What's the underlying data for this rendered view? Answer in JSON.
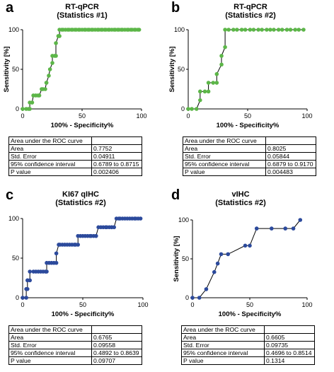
{
  "panels": [
    {
      "letter": "a",
      "title": "RT-qPCR",
      "subtitle": "(Statistics #1)",
      "color": "#5cb648",
      "table": {
        "header": "Area under the ROC curve",
        "rows": [
          {
            "label": "Area",
            "value": "0.7752"
          },
          {
            "label": "Std. Error",
            "value": "0.04911"
          },
          {
            "label": "95% confidence interval",
            "value": "0.6789 to 0.8715"
          },
          {
            "label": "P value",
            "value": "0.002406"
          }
        ]
      }
    },
    {
      "letter": "b",
      "title": "RT-qPCR",
      "subtitle": "(Statistics #2)",
      "color": "#5cb648",
      "table": {
        "header": "Area under the ROC curve",
        "rows": [
          {
            "label": "Area",
            "value": "0.8025"
          },
          {
            "label": "Std. Error",
            "value": "0.05844"
          },
          {
            "label": "95% confidence interval",
            "value": "0.6879 to 0.9170"
          },
          {
            "label": "P value",
            "value": "0.004483"
          }
        ]
      }
    },
    {
      "letter": "c",
      "title": "KI67 qIHC",
      "subtitle": "(Statistics #2)",
      "color": "#2c4a9c",
      "table": {
        "header": "Area under the ROC curve",
        "rows": [
          {
            "label": "Area",
            "value": "0.6765"
          },
          {
            "label": "Std. Error",
            "value": "0.09558"
          },
          {
            "label": "95% confidence interval",
            "value": "0.4892 to 0.8639"
          },
          {
            "label": "P value",
            "value": "0.09707"
          }
        ]
      }
    },
    {
      "letter": "d",
      "title": "vIHC",
      "subtitle": "(Statistics #2)",
      "color": "#2c4a9c",
      "table": {
        "header": "Area under the ROC curve",
        "rows": [
          {
            "label": "Area",
            "value": "0.6605"
          },
          {
            "label": "Std. Error",
            "value": "0.09735"
          },
          {
            "label": "95% confidence interval",
            "value": "0.4696 to 0.8514"
          },
          {
            "label": "P value",
            "value": "0.1314"
          }
        ]
      }
    }
  ],
  "chart_data": [
    {
      "type": "line",
      "title": "RT-qPCR",
      "subtitle": "(Statistics #1)",
      "xlabel": "100% - Specificity%",
      "ylabel": "Sensitivity [%]",
      "xlim": [
        0,
        100
      ],
      "ylim": [
        0,
        100
      ],
      "xticks": [
        0,
        50,
        100
      ],
      "yticks": [
        0,
        50,
        100
      ],
      "grid": false,
      "x": [
        0,
        3,
        5,
        6,
        6,
        8,
        9,
        11,
        13,
        14,
        16,
        17,
        19,
        20,
        20,
        22,
        23,
        25,
        25,
        27,
        28,
        28,
        30,
        31,
        31,
        33,
        34,
        36,
        38,
        39,
        41,
        42,
        44,
        45,
        47,
        48,
        50,
        52,
        53,
        55,
        56,
        58,
        59,
        61,
        63,
        64,
        66,
        67,
        69,
        70,
        72,
        73,
        75,
        77,
        78,
        80,
        81,
        83,
        84,
        86,
        88,
        89,
        91,
        92,
        94,
        95,
        97,
        98
      ],
      "y": [
        0,
        0,
        0,
        0,
        8,
        8,
        17,
        17,
        17,
        17,
        25,
        25,
        25,
        33,
        33,
        42,
        50,
        58,
        67,
        67,
        67,
        83,
        92,
        92,
        100,
        100,
        100,
        100,
        100,
        100,
        100,
        100,
        100,
        100,
        100,
        100,
        100,
        100,
        100,
        100,
        100,
        100,
        100,
        100,
        100,
        100,
        100,
        100,
        100,
        100,
        100,
        100,
        100,
        100,
        100,
        100,
        100,
        100,
        100,
        100,
        100,
        100,
        100,
        100,
        100,
        100,
        100,
        100
      ]
    },
    {
      "type": "line",
      "title": "RT-qPCR",
      "subtitle": "(Statistics #2)",
      "xlabel": "100% - Specificity%",
      "ylabel": "Sensitivity [%]",
      "xlim": [
        0,
        100
      ],
      "ylim": [
        0,
        100
      ],
      "xticks": [
        0,
        50,
        100
      ],
      "yticks": [
        0,
        50,
        100
      ],
      "grid": false,
      "x": [
        0,
        3,
        7,
        10,
        10,
        14,
        17,
        17,
        21,
        24,
        24,
        28,
        28,
        31,
        31,
        34,
        38,
        41,
        45,
        48,
        52,
        55,
        59,
        62,
        66,
        69,
        72,
        76,
        79,
        83,
        86,
        90,
        93,
        97
      ],
      "y": [
        0,
        0,
        0,
        11,
        22,
        22,
        22,
        33,
        33,
        33,
        44,
        56,
        67,
        78,
        100,
        100,
        100,
        100,
        100,
        100,
        100,
        100,
        100,
        100,
        100,
        100,
        100,
        100,
        100,
        100,
        100,
        100,
        100,
        100
      ]
    },
    {
      "type": "line",
      "title": "KI67 qIHC",
      "subtitle": "(Statistics #2)",
      "xlabel": "100% - Specificity%",
      "ylabel": "",
      "xlim": [
        0,
        100
      ],
      "ylim": [
        0,
        100
      ],
      "xticks": [
        0,
        50,
        100
      ],
      "yticks": [
        0,
        50,
        100
      ],
      "grid": false,
      "x": [
        0,
        3,
        3,
        4,
        4,
        6,
        6,
        9,
        11,
        13,
        15,
        17,
        19,
        20,
        20,
        22,
        24,
        26,
        28,
        28,
        30,
        31,
        33,
        35,
        37,
        39,
        41,
        43,
        44,
        46,
        46,
        48,
        50,
        52,
        54,
        56,
        57,
        59,
        61,
        61,
        63,
        65,
        67,
        69,
        70,
        72,
        74,
        74,
        76,
        78,
        80,
        81,
        83,
        85,
        87,
        89,
        91,
        93,
        94,
        96,
        98
      ],
      "y": [
        0,
        0,
        11,
        11,
        22,
        22,
        33,
        33,
        33,
        33,
        33,
        33,
        33,
        33,
        44,
        44,
        44,
        44,
        44,
        56,
        67,
        67,
        67,
        67,
        67,
        67,
        67,
        67,
        67,
        67,
        78,
        78,
        78,
        78,
        78,
        78,
        78,
        78,
        78,
        78,
        89,
        89,
        89,
        89,
        89,
        89,
        89,
        89,
        89,
        100,
        100,
        100,
        100,
        100,
        100,
        100,
        100,
        100,
        100,
        100,
        100
      ]
    },
    {
      "type": "line",
      "title": "vIHC",
      "subtitle": "(Statistics #2)",
      "xlabel": "100% - Specificity%",
      "ylabel": "Sensitivity [%]",
      "xlim": [
        0,
        100
      ],
      "ylim": [
        0,
        100
      ],
      "xticks": [
        0,
        50,
        100
      ],
      "yticks": [
        0,
        50,
        100
      ],
      "grid": false,
      "x": [
        0,
        6,
        12,
        19,
        22,
        25,
        31,
        46,
        50,
        56,
        69,
        81,
        88,
        94
      ],
      "y": [
        0,
        0,
        11,
        33,
        44,
        56,
        56,
        67,
        67,
        89,
        89,
        89,
        89,
        100
      ]
    }
  ]
}
